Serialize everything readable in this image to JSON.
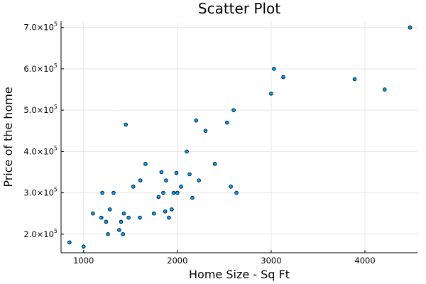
{
  "chart_data": {
    "type": "scatter",
    "title": "Scatter Plot",
    "xlabel": "Home Size - Sq Ft",
    "ylabel": "Price of the home",
    "xlim": [
      760,
      4560
    ],
    "ylim": [
      155000,
      715000
    ],
    "x_ticks": [
      1000,
      2000,
      3000,
      4000
    ],
    "x_tick_labels": [
      "1000",
      "2000",
      "3000",
      "4000"
    ],
    "y_ticks": [
      200000,
      300000,
      400000,
      500000,
      600000,
      700000
    ],
    "y_tick_labels": [
      {
        "mantissa": "2.0×10",
        "exp": "5"
      },
      {
        "mantissa": "3.0×10",
        "exp": "5"
      },
      {
        "mantissa": "4.0×10",
        "exp": "5"
      },
      {
        "mantissa": "5.0×10",
        "exp": "5"
      },
      {
        "mantissa": "6.0×10",
        "exp": "5"
      },
      {
        "mantissa": "7.0×10",
        "exp": "5"
      }
    ],
    "grid": true,
    "marker_color": "#009AFA",
    "x": [
      850,
      1000,
      1100,
      1190,
      1200,
      1240,
      1260,
      1280,
      1320,
      1380,
      1400,
      1420,
      1430,
      1450,
      1480,
      1530,
      1600,
      1605,
      1660,
      1750,
      1800,
      1830,
      1850,
      1870,
      1880,
      1910,
      1940,
      1960,
      1990,
      2000,
      2040,
      2100,
      2130,
      2160,
      2200,
      2230,
      2300,
      2400,
      2530,
      2570,
      2600,
      2630,
      3000,
      3030,
      3130,
      3890,
      4210,
      4480
    ],
    "y": [
      180000,
      170000,
      250000,
      240000,
      300000,
      230000,
      200000,
      260000,
      300000,
      210000,
      230000,
      200000,
      250000,
      465000,
      240000,
      315000,
      240000,
      330000,
      370000,
      250000,
      290000,
      350000,
      300000,
      255000,
      330000,
      240000,
      260000,
      300000,
      348000,
      300000,
      315000,
      400000,
      345000,
      288000,
      475000,
      330000,
      450000,
      370000,
      470000,
      315000,
      500000,
      300000,
      540000,
      600000,
      580000,
      575000,
      550000,
      700000
    ]
  }
}
